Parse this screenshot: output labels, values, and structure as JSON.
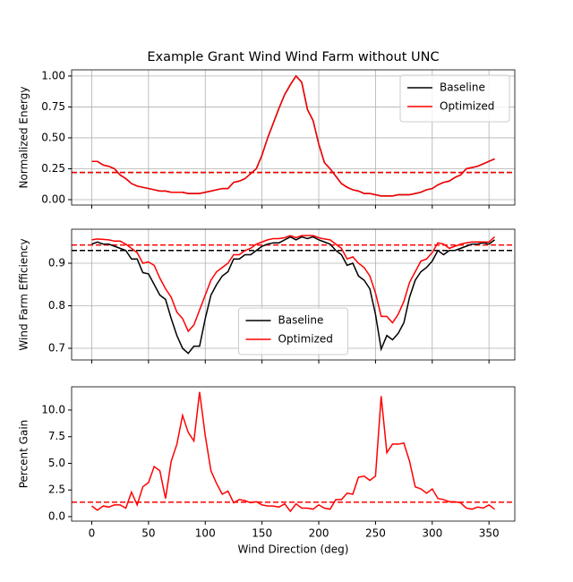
{
  "chart_data": [
    {
      "type": "line",
      "title": "Example Grant Wind Wind Farm without UNC",
      "ylabel": "Normalized Energy",
      "x": [
        0,
        5,
        10,
        15,
        20,
        25,
        30,
        35,
        40,
        45,
        50,
        55,
        60,
        65,
        70,
        75,
        80,
        85,
        90,
        95,
        100,
        105,
        110,
        115,
        120,
        125,
        130,
        135,
        140,
        145,
        150,
        155,
        160,
        165,
        170,
        175,
        180,
        185,
        190,
        195,
        200,
        205,
        210,
        215,
        220,
        225,
        230,
        235,
        240,
        245,
        250,
        255,
        260,
        265,
        270,
        275,
        280,
        285,
        290,
        295,
        300,
        305,
        310,
        315,
        320,
        325,
        330,
        335,
        340,
        345,
        350,
        355
      ],
      "series": [
        {
          "name": "Baseline",
          "color": "#000000",
          "values": [
            0.31,
            0.31,
            0.28,
            0.27,
            0.25,
            0.2,
            0.17,
            0.13,
            0.11,
            0.1,
            0.09,
            0.08,
            0.07,
            0.07,
            0.06,
            0.06,
            0.06,
            0.05,
            0.05,
            0.05,
            0.06,
            0.07,
            0.08,
            0.09,
            0.09,
            0.14,
            0.15,
            0.17,
            0.21,
            0.25,
            0.36,
            0.5,
            0.62,
            0.74,
            0.85,
            0.93,
            1.0,
            0.95,
            0.73,
            0.64,
            0.45,
            0.3,
            0.25,
            0.19,
            0.13,
            0.1,
            0.08,
            0.07,
            0.05,
            0.05,
            0.04,
            0.03,
            0.03,
            0.03,
            0.04,
            0.04,
            0.04,
            0.05,
            0.06,
            0.08,
            0.09,
            0.12,
            0.14,
            0.15,
            0.18,
            0.2,
            0.25,
            0.26,
            0.27,
            0.29,
            0.31,
            0.33
          ]
        },
        {
          "name": "Optimized",
          "color": "#ff0000",
          "values": [
            0.31,
            0.31,
            0.28,
            0.27,
            0.25,
            0.2,
            0.17,
            0.13,
            0.11,
            0.1,
            0.09,
            0.08,
            0.07,
            0.07,
            0.06,
            0.06,
            0.06,
            0.05,
            0.05,
            0.05,
            0.06,
            0.07,
            0.08,
            0.09,
            0.09,
            0.14,
            0.15,
            0.17,
            0.21,
            0.25,
            0.36,
            0.5,
            0.62,
            0.74,
            0.85,
            0.93,
            1.0,
            0.95,
            0.73,
            0.64,
            0.45,
            0.3,
            0.25,
            0.19,
            0.13,
            0.1,
            0.08,
            0.07,
            0.05,
            0.05,
            0.04,
            0.03,
            0.03,
            0.03,
            0.04,
            0.04,
            0.04,
            0.05,
            0.06,
            0.08,
            0.09,
            0.12,
            0.14,
            0.15,
            0.18,
            0.2,
            0.25,
            0.26,
            0.27,
            0.29,
            0.31,
            0.33
          ]
        }
      ],
      "hlines": [
        {
          "value": 0.22,
          "color": "#000000"
        },
        {
          "value": 0.22,
          "color": "#ff0000"
        }
      ],
      "xlim": [
        -17.75,
        372.75
      ],
      "xticks": [
        0,
        50,
        100,
        150,
        200,
        250,
        300,
        350
      ],
      "ylim": [
        -0.0435,
        1.05
      ],
      "yticks": [
        {
          "value": 0,
          "label": "0.00"
        },
        {
          "value": 0.25,
          "label": "0.25"
        },
        {
          "value": 0.5,
          "label": "0.50"
        },
        {
          "value": 0.75,
          "label": "0.75"
        },
        {
          "value": 1,
          "label": "1.00"
        }
      ],
      "grid": true,
      "legend": "upper right"
    },
    {
      "type": "line",
      "ylabel": "Wind Farm Efficiency",
      "x": [
        0,
        5,
        10,
        15,
        20,
        25,
        30,
        35,
        40,
        45,
        50,
        55,
        60,
        65,
        70,
        75,
        80,
        85,
        90,
        95,
        100,
        105,
        110,
        115,
        120,
        125,
        130,
        135,
        140,
        145,
        150,
        155,
        160,
        165,
        170,
        175,
        180,
        185,
        190,
        195,
        200,
        205,
        210,
        215,
        220,
        225,
        230,
        235,
        240,
        245,
        250,
        255,
        260,
        265,
        270,
        275,
        280,
        285,
        290,
        295,
        300,
        305,
        310,
        315,
        320,
        325,
        330,
        335,
        340,
        345,
        350,
        355
      ],
      "series": [
        {
          "name": "Baseline",
          "color": "#000000",
          "values": [
            0.945,
            0.95,
            0.945,
            0.945,
            0.94,
            0.935,
            0.93,
            0.91,
            0.91,
            0.878,
            0.875,
            0.85,
            0.825,
            0.815,
            0.77,
            0.73,
            0.7,
            0.688,
            0.705,
            0.705,
            0.77,
            0.825,
            0.85,
            0.87,
            0.88,
            0.91,
            0.91,
            0.92,
            0.92,
            0.93,
            0.94,
            0.945,
            0.948,
            0.948,
            0.955,
            0.962,
            0.955,
            0.962,
            0.958,
            0.962,
            0.955,
            0.95,
            0.945,
            0.93,
            0.92,
            0.895,
            0.9,
            0.87,
            0.86,
            0.84,
            0.78,
            0.698,
            0.73,
            0.72,
            0.735,
            0.76,
            0.82,
            0.86,
            0.88,
            0.89,
            0.905,
            0.93,
            0.92,
            0.93,
            0.93,
            0.935,
            0.94,
            0.945,
            0.945,
            0.948,
            0.945,
            0.955
          ]
        },
        {
          "name": "Optimized",
          "color": "#ff0000",
          "values": [
            0.955,
            0.957,
            0.956,
            0.955,
            0.952,
            0.952,
            0.945,
            0.935,
            0.925,
            0.9,
            0.903,
            0.895,
            0.865,
            0.84,
            0.82,
            0.785,
            0.77,
            0.74,
            0.755,
            0.79,
            0.825,
            0.86,
            0.88,
            0.89,
            0.9,
            0.92,
            0.92,
            0.93,
            0.935,
            0.945,
            0.95,
            0.955,
            0.958,
            0.958,
            0.96,
            0.965,
            0.96,
            0.965,
            0.965,
            0.965,
            0.96,
            0.957,
            0.955,
            0.945,
            0.935,
            0.91,
            0.915,
            0.9,
            0.89,
            0.87,
            0.83,
            0.775,
            0.775,
            0.76,
            0.78,
            0.81,
            0.855,
            0.88,
            0.905,
            0.91,
            0.925,
            0.948,
            0.945,
            0.935,
            0.94,
            0.945,
            0.948,
            0.95,
            0.95,
            0.95,
            0.95,
            0.962
          ]
        }
      ],
      "hlines": [
        {
          "value": 0.93,
          "color": "#000000"
        },
        {
          "value": 0.943,
          "color": "#ff0000"
        }
      ],
      "xlim": [
        -17.75,
        372.75
      ],
      "xticks": [
        0,
        50,
        100,
        150,
        200,
        250,
        300,
        350
      ],
      "ylim": [
        0.6726,
        0.98
      ],
      "yticks": [
        0.7,
        0.8,
        0.9
      ],
      "grid": true,
      "legend": "lower center"
    },
    {
      "type": "line",
      "ylabel": "Percent Gain",
      "xlabel": "Wind Direction (deg)",
      "x": [
        0,
        5,
        10,
        15,
        20,
        25,
        30,
        35,
        40,
        45,
        50,
        55,
        60,
        65,
        70,
        75,
        80,
        85,
        90,
        95,
        100,
        105,
        110,
        115,
        120,
        125,
        130,
        135,
        140,
        145,
        150,
        155,
        160,
        165,
        170,
        175,
        180,
        185,
        190,
        195,
        200,
        205,
        210,
        215,
        220,
        225,
        230,
        235,
        240,
        245,
        250,
        255,
        260,
        265,
        270,
        275,
        280,
        285,
        290,
        295,
        300,
        305,
        310,
        315,
        320,
        325,
        330,
        335,
        340,
        345,
        350,
        355
      ],
      "series": [
        {
          "color": "#ff0000",
          "values": [
            1.0,
            0.6,
            1.0,
            0.9,
            1.1,
            1.1,
            0.8,
            2.3,
            1.1,
            2.8,
            3.2,
            4.7,
            4.3,
            1.7,
            5.2,
            6.8,
            9.5,
            7.9,
            7.1,
            11.7,
            7.6,
            4.3,
            3.1,
            2.1,
            2.4,
            1.3,
            1.6,
            1.5,
            1.3,
            1.4,
            1.1,
            1.0,
            1.0,
            0.9,
            1.2,
            0.5,
            1.2,
            0.8,
            0.8,
            0.7,
            1.1,
            0.8,
            0.7,
            1.6,
            1.6,
            2.2,
            2.1,
            3.7,
            3.8,
            3.4,
            3.8,
            11.3,
            6.0,
            6.8,
            6.8,
            6.9,
            5.2,
            2.8,
            2.6,
            2.2,
            2.6,
            1.7,
            1.6,
            1.4,
            1.4,
            1.3,
            0.8,
            0.7,
            0.9,
            0.8,
            1.1,
            0.7
          ]
        }
      ],
      "hlines": [
        {
          "value": 1.35,
          "color": "#ff0000"
        }
      ],
      "xlim": [
        -17.75,
        372.75
      ],
      "xticks": [
        0,
        50,
        100,
        150,
        200,
        250,
        300,
        350
      ],
      "ylim": [
        -0.42,
        12.18
      ],
      "yticks": [
        {
          "value": 0,
          "label": "0.0"
        },
        {
          "value": 2.5,
          "label": "2.5"
        },
        {
          "value": 5,
          "label": "5.0"
        },
        {
          "value": 7.5,
          "label": "7.5"
        },
        {
          "value": 10,
          "label": "10.0"
        }
      ],
      "grid": false
    }
  ]
}
